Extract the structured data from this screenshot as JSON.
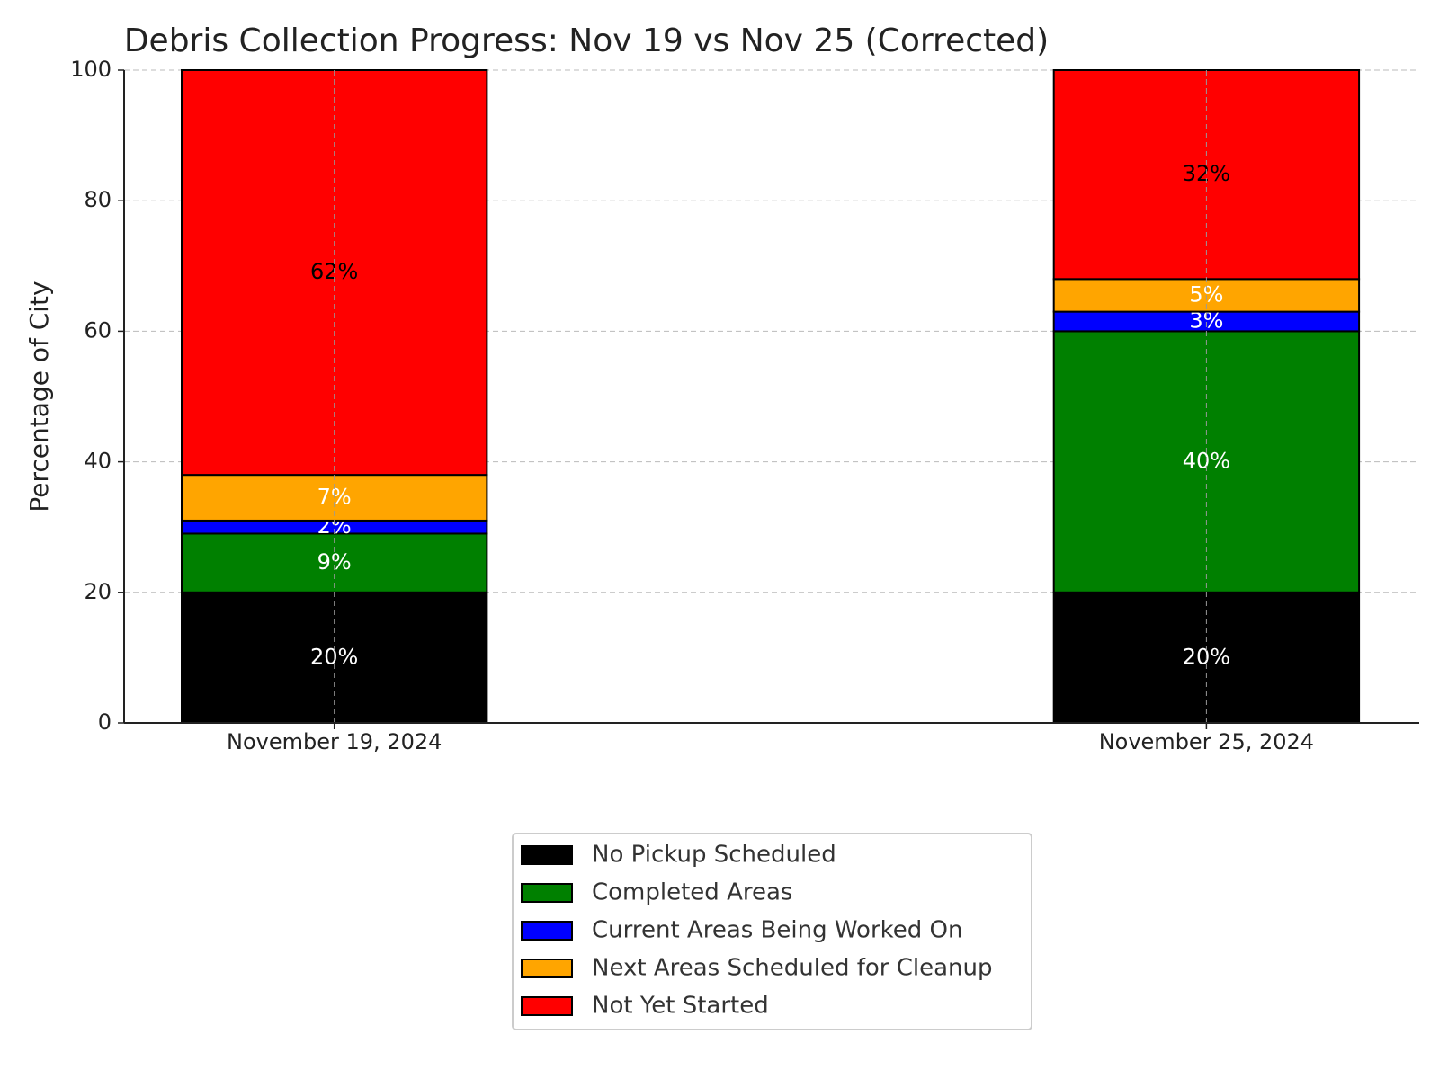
{
  "chart_data": {
    "type": "stacked_bar",
    "title": "Debris Collection Progress: Nov 19 vs Nov 25 (Corrected)",
    "y_label": "Percentage of City",
    "categories": [
      "November 19, 2024",
      "November 25, 2024"
    ],
    "series": [
      {
        "name": "No Pickup Scheduled",
        "color": "#000000",
        "label_color": "#ffffff",
        "values": [
          20,
          20
        ],
        "value_labels": [
          "20%",
          "20%"
        ]
      },
      {
        "name": "Completed Areas",
        "color": "#008000",
        "label_color": "#ffffff",
        "values": [
          9,
          40
        ],
        "value_labels": [
          "9%",
          "40%"
        ]
      },
      {
        "name": "Current Areas Being Worked On",
        "color": "#0000ff",
        "label_color": "#ffffff",
        "values": [
          2,
          3
        ],
        "value_labels": [
          "2%",
          "3%"
        ]
      },
      {
        "name": "Next Areas Scheduled for Cleanup",
        "color": "#ffa500",
        "label_color": "#ffffff",
        "values": [
          7,
          5
        ],
        "value_labels": [
          "7%",
          "5%"
        ]
      },
      {
        "name": "Not Yet Started",
        "color": "#ff0000",
        "label_color": "#000000",
        "values": [
          62,
          32
        ],
        "value_labels": [
          "62%",
          "32%"
        ]
      }
    ],
    "ylim": [
      0,
      100
    ],
    "yticks": [
      0,
      20,
      40,
      60,
      80,
      100
    ],
    "grid": true,
    "legend": "bottom"
  }
}
